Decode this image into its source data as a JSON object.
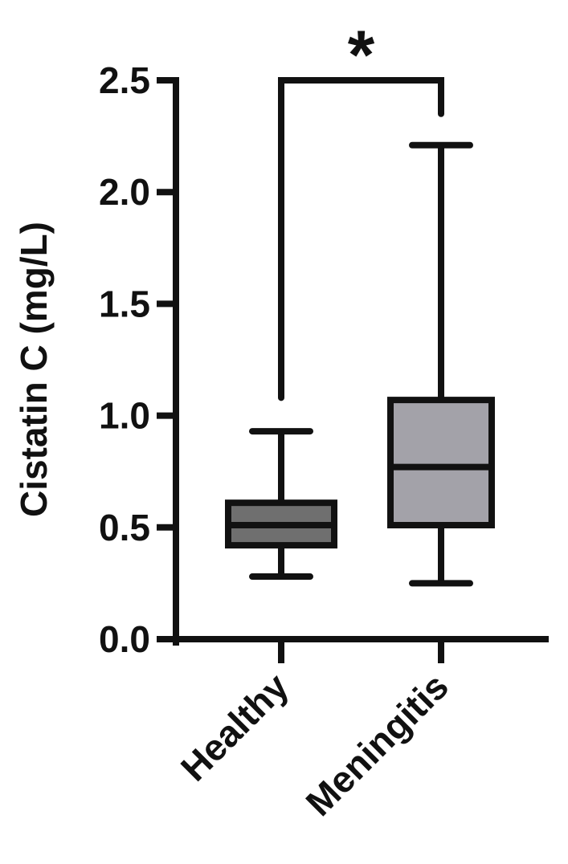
{
  "chart_data": {
    "type": "box",
    "title": "",
    "xlabel": "",
    "ylabel": "Cistatin C (mg/L)",
    "ylim": [
      0,
      2.5
    ],
    "yticks": [
      "0.0",
      "0.5",
      "1.0",
      "1.5",
      "2.0",
      "2.5"
    ],
    "grid": false,
    "legend": "none",
    "categories": [
      "Healthy",
      "Meningitis"
    ],
    "boxes": [
      {
        "category": "Healthy",
        "min": 0.28,
        "q1": 0.42,
        "median": 0.51,
        "q3": 0.61,
        "max": 0.93,
        "fill": "#6f6f6f"
      },
      {
        "category": "Meningitis",
        "min": 0.25,
        "q1": 0.51,
        "median": 0.77,
        "q3": 1.07,
        "max": 2.21,
        "fill": "#a3a2a9"
      }
    ],
    "annotations": [
      {
        "type": "significance-bracket",
        "from": "Healthy",
        "to": "Meningitis",
        "y": 2.5,
        "left_end": 1.08,
        "right_end": 2.35,
        "label": "*"
      }
    ],
    "stroke_color": "#111111"
  }
}
